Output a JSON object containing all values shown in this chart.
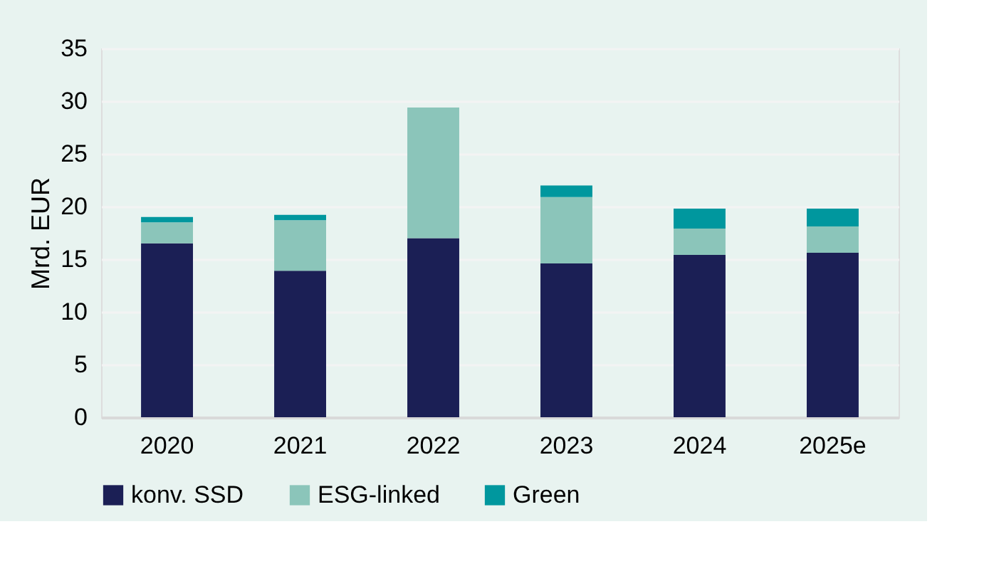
{
  "chart_data": {
    "type": "bar",
    "stacked": true,
    "ylabel": "Mrd. EUR",
    "categories": [
      "2020",
      "2021",
      "2022",
      "2023",
      "2024",
      "2025e"
    ],
    "series": [
      {
        "name": "konv. SSD",
        "color": "#1b1f55",
        "values": [
          16.5,
          13.9,
          17.0,
          14.6,
          15.4,
          15.6
        ]
      },
      {
        "name": "ESG-linked",
        "color": "#8bc5ba",
        "values": [
          2.0,
          4.8,
          12.4,
          6.3,
          2.5,
          2.5
        ]
      },
      {
        "name": "Green",
        "color": "#00979e",
        "values": [
          0.5,
          0.5,
          0,
          1.1,
          1.9,
          1.7
        ]
      }
    ],
    "ylim": [
      0,
      35
    ],
    "yticks": [
      0,
      5,
      10,
      15,
      20,
      25,
      30,
      35
    ],
    "grid": "y",
    "legend": "bottom"
  }
}
